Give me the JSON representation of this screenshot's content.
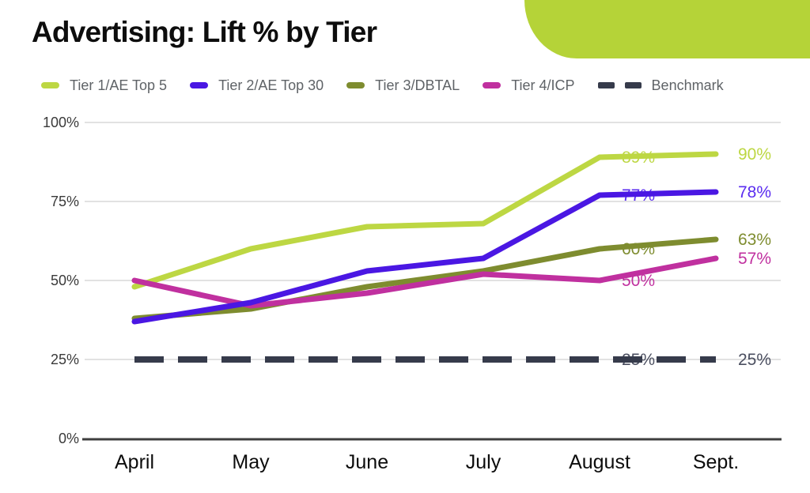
{
  "title": "Advertising: Lift % by Tier",
  "accent": {
    "corner_color": "#b5d338"
  },
  "legend": {
    "text_color": "#5f6367",
    "items": [
      {
        "label": "Tier 1/AE Top 5",
        "color": "#bdd743",
        "dashed": false
      },
      {
        "label": "Tier 2/AE Top 30",
        "color": "#4a17e3",
        "dashed": false
      },
      {
        "label": "Tier 3/DBTAL",
        "color": "#7e8c2f",
        "dashed": false
      },
      {
        "label": "Tier 4/ICP",
        "color": "#c0309f",
        "dashed": false
      },
      {
        "label": "Benchmark",
        "color": "#363b4b",
        "dashed": true
      }
    ]
  },
  "chart_data": {
    "type": "line",
    "title": "Advertising: Lift % by Tier",
    "xlabel": "",
    "ylabel": "",
    "ylim": [
      0,
      100
    ],
    "grid": true,
    "legend_position": "top",
    "categories": [
      "April",
      "May",
      "June",
      "July",
      "August",
      "Sept."
    ],
    "yticks": [
      {
        "label": "0%",
        "value": 0
      },
      {
        "label": "25%",
        "value": 25
      },
      {
        "label": "50%",
        "value": 50
      },
      {
        "label": "75%",
        "value": 75
      },
      {
        "label": "100%",
        "value": 100
      }
    ],
    "series": [
      {
        "name": "Tier 1/AE Top 5",
        "color": "#bdd743",
        "label_color": "#bdd743",
        "dashed": false,
        "values": [
          48,
          60,
          67,
          68,
          89,
          90
        ],
        "point_labels": [
          null,
          null,
          null,
          null,
          "89%",
          "90%"
        ]
      },
      {
        "name": "Tier 2/AE Top 30",
        "color": "#4a17e3",
        "label_color": "#5a2cf0",
        "dashed": false,
        "values": [
          37,
          43,
          53,
          57,
          77,
          78
        ],
        "point_labels": [
          null,
          null,
          null,
          null,
          "77%",
          "78%"
        ]
      },
      {
        "name": "Tier 3/DBTAL",
        "color": "#7e8c2f",
        "label_color": "#7e8c2f",
        "dashed": false,
        "values": [
          38,
          41,
          48,
          53,
          60,
          63
        ],
        "point_labels": [
          null,
          null,
          null,
          null,
          "60%",
          "63%"
        ]
      },
      {
        "name": "Tier 4/ICP",
        "color": "#c0309f",
        "label_color": "#c0309f",
        "dashed": false,
        "values": [
          50,
          42,
          46,
          52,
          50,
          57
        ],
        "point_labels": [
          null,
          null,
          null,
          null,
          "50%",
          "57%"
        ]
      },
      {
        "name": "Benchmark",
        "color": "#363b4b",
        "label_color": "#4a4e5f",
        "dashed": true,
        "values": [
          25,
          25,
          25,
          25,
          25,
          25
        ],
        "point_labels": [
          null,
          null,
          null,
          null,
          "25%",
          "25%"
        ]
      }
    ],
    "draw_order": [
      4,
      0,
      2,
      3,
      1
    ],
    "style": {
      "gridline_color": "#d8d8d8",
      "axis_color": "#3e3e3e",
      "ytick_color": "#3a3a3a",
      "xtick_color": "#0c0c0c"
    }
  }
}
